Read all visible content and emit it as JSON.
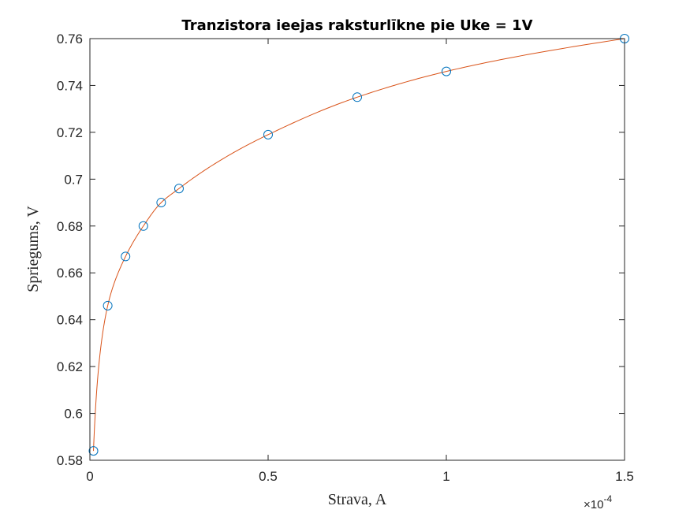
{
  "chart_data": {
    "type": "scatter",
    "title": "Tranzistora ieejas raksturlīkne pie Uke = 1V",
    "xlabel": "Strava, A",
    "ylabel": "Spriegums, V",
    "x_scale_exponent_label": "×10",
    "x_scale_exponent": "-4",
    "xlim": [
      0,
      0.00015
    ],
    "ylim": [
      0.58,
      0.76
    ],
    "x_ticks": [
      0,
      5e-05,
      0.0001,
      0.00015
    ],
    "x_tick_labels": [
      "0",
      "0.5",
      "1",
      "1.5"
    ],
    "y_ticks": [
      0.58,
      0.6,
      0.62,
      0.64,
      0.66,
      0.68,
      0.7,
      0.72,
      0.74,
      0.76
    ],
    "y_tick_labels": [
      "0.58",
      "0.6",
      "0.62",
      "0.64",
      "0.66",
      "0.68",
      "0.7",
      "0.72",
      "0.74",
      "0.76"
    ],
    "grid": false,
    "series": [
      {
        "kind": "markers",
        "marker": "circle",
        "color": "#0072BD",
        "x": [
          1e-06,
          5e-06,
          1e-05,
          1.5e-05,
          2e-05,
          2.5e-05,
          5e-05,
          7.5e-05,
          0.0001,
          0.00015
        ],
        "y": [
          0.584,
          0.646,
          0.667,
          0.68,
          0.69,
          0.696,
          0.719,
          0.735,
          0.746,
          0.76
        ]
      },
      {
        "kind": "line",
        "color": "#D95319",
        "interpolation": "smooth fit through data points"
      }
    ]
  }
}
